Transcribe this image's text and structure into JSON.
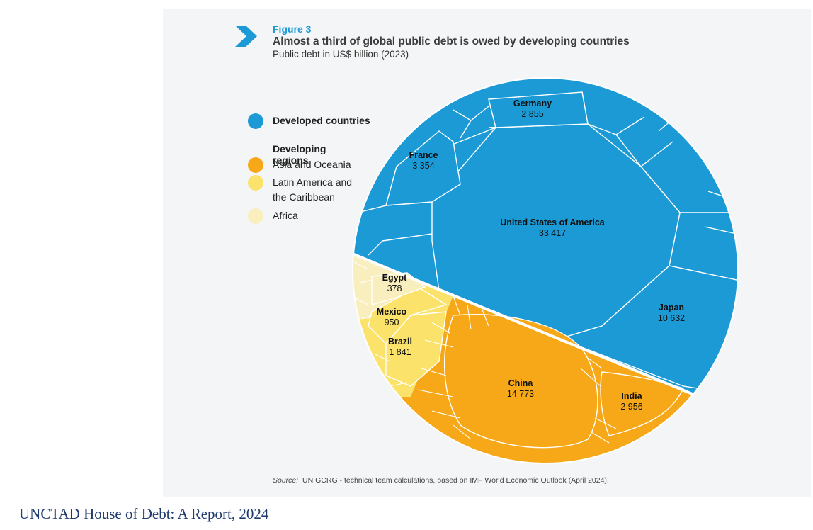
{
  "figure": {
    "label": "Figure 3",
    "title": "Almost a third of global public debt is owed by developing countries",
    "subtitle": "Public debt in US$ billion (2023)"
  },
  "legend": {
    "developed": "Developed countries",
    "developing_heading": "Developing regions",
    "asia": "Asia and Oceania",
    "latam_line1": "Latin America and",
    "latam_line2": "the Caribbean",
    "africa": "Africa"
  },
  "colors": {
    "developed": "#1b9ad6",
    "asia": "#f7a818",
    "latam": "#fbe26b",
    "africa": "#f9eebd"
  },
  "chart_data": {
    "type": "voronoi-treemap",
    "title": "Almost a third of global public debt is owed by developing countries",
    "subtitle": "Public debt in US$ billion (2023)",
    "unit": "US$ billion",
    "labeled_cells": [
      {
        "name": "United States of America",
        "value": "33 417",
        "group": "developed"
      },
      {
        "name": "Japan",
        "value": "10 632",
        "group": "developed"
      },
      {
        "name": "France",
        "value": "3 354",
        "group": "developed"
      },
      {
        "name": "Germany",
        "value": "2 855",
        "group": "developed"
      },
      {
        "name": "China",
        "value": "14 773",
        "group": "asia"
      },
      {
        "name": "India",
        "value": "2 956",
        "group": "asia"
      },
      {
        "name": "Brazil",
        "value": "1 841",
        "group": "latam"
      },
      {
        "name": "Mexico",
        "value": "950",
        "group": "latam"
      },
      {
        "name": "Egypt",
        "value": "378",
        "group": "africa"
      }
    ]
  },
  "source": {
    "prefix": "Source:",
    "text": "UN GCRG - technical team calculations, based on IMF World Economic Outlook (April 2024)."
  },
  "caption": "UNCTAD House of Debt: A Report, 2024"
}
